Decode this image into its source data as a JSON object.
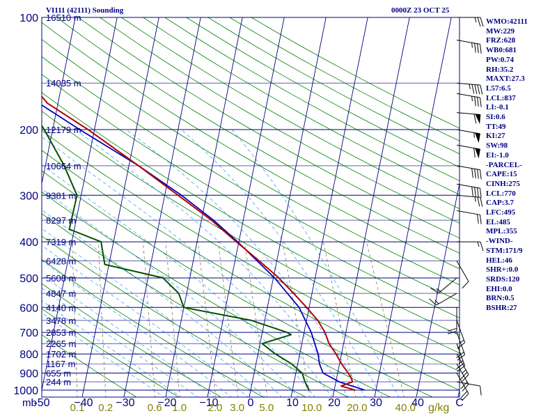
{
  "header": {
    "station_label": "VI111 (42111) Sounding",
    "valid_time": "0000Z 23 OCT 25"
  },
  "stats": [
    "WMO:42111",
    "MW:229",
    "FRZ:628",
    "WB0:681",
    "PW:0.74",
    "RH:35.2",
    "MAXT:27.3",
    "L57:6.5",
    "LCL:837",
    "LI:-0.1",
    "SI:0.6",
    "TT:49",
    "KI:27",
    "SW:98",
    "EI:-1.0",
    "-PARCEL-",
    "CAPE:15",
    "CINH:275",
    "LCL:770",
    "CAP:3.7",
    "LFC:495",
    "EL:485",
    "MPL:355",
    "-WIND-",
    "STM:171/9",
    "HEL:46",
    "SHR+:0.0",
    "SRDS:120",
    "EHI:0.0",
    "BRN:0.5",
    "BSHR:27"
  ],
  "chart_data": {
    "type": "skew-t",
    "colors": {
      "isobar": "#000080",
      "isotherm": "#000080",
      "dry_adiabat": "#008000",
      "moist_adiabat": "#40a0ff",
      "mixing_ratio": "#808040",
      "temperature": "#b00000",
      "dewpoint": "#005000",
      "parcel": "#0000c0",
      "axis_text": "#000080",
      "mixing_text": "#808000"
    },
    "pressure_unit": "mb",
    "mixing_unit": "g/kg",
    "pressure_range_mb": [
      1000,
      100
    ],
    "isobars_mb": [
      100,
      200,
      300,
      400,
      500,
      600,
      700,
      800,
      900,
      1000
    ],
    "pressure_tick_labels": [
      "100",
      "200",
      "300",
      "400",
      "500",
      "600",
      "700",
      "800",
      "900",
      "1000"
    ],
    "temperature_ticks_c": [
      -50,
      -40,
      -30,
      -20,
      -10,
      0,
      10,
      20,
      30,
      40,
      50
    ],
    "temperature_tick_labels": [
      "-50",
      "−40",
      "−30",
      "−20",
      "−10",
      "0",
      "10",
      "20",
      "30",
      "40",
      "C"
    ],
    "mixing_ratio_ticks": [
      "0.1",
      "0.2",
      "0.6",
      "1.0",
      "2.0",
      "3.0",
      "5.0",
      "10.0",
      "20.0",
      "40.0"
    ],
    "height_labels": [
      {
        "p": 100,
        "text": "16510 m"
      },
      {
        "p": 150,
        "text": "14035 m"
      },
      {
        "p": 200,
        "text": "12179 m"
      },
      {
        "p": 250,
        "text": "10664 m"
      },
      {
        "p": 300,
        "text": "9381 m"
      },
      {
        "p": 350,
        "text": "8297 m"
      },
      {
        "p": 400,
        "text": "7319 m"
      },
      {
        "p": 450,
        "text": "6428 m"
      },
      {
        "p": 500,
        "text": "5608 m"
      },
      {
        "p": 550,
        "text": "4847 m"
      },
      {
        "p": 600,
        "text": "4140 m"
      },
      {
        "p": 650,
        "text": "3478 m"
      },
      {
        "p": 700,
        "text": "2853 m"
      },
      {
        "p": 750,
        "text": "2265 m"
      },
      {
        "p": 800,
        "text": "1702 m"
      },
      {
        "p": 850,
        "text": "1167 m"
      },
      {
        "p": 900,
        "text": "655 m"
      },
      {
        "p": 950,
        "text": "244 m"
      }
    ],
    "temperature_profile": [
      {
        "p": 1000,
        "t": 25.0
      },
      {
        "p": 975,
        "t": 21.5
      },
      {
        "p": 950,
        "t": 24.0
      },
      {
        "p": 925,
        "t": 23.4
      },
      {
        "p": 900,
        "t": 22.5
      },
      {
        "p": 850,
        "t": 20.5
      },
      {
        "p": 800,
        "t": 18.7
      },
      {
        "p": 750,
        "t": 16.5
      },
      {
        "p": 700,
        "t": 15.0
      },
      {
        "p": 650,
        "t": 12.7
      },
      {
        "p": 600,
        "t": 9.4
      },
      {
        "p": 550,
        "t": 5.6
      },
      {
        "p": 500,
        "t": 1.3
      },
      {
        "p": 450,
        "t": -4.2
      },
      {
        "p": 400,
        "t": -10.6
      },
      {
        "p": 350,
        "t": -17.6
      },
      {
        "p": 300,
        "t": -26.8
      },
      {
        "p": 250,
        "t": -37.7
      },
      {
        "p": 200,
        "t": -51.5
      },
      {
        "p": 170,
        "t": -62.5
      },
      {
        "p": 150,
        "t": -67.6
      },
      {
        "p": 130,
        "t": -73.4
      },
      {
        "p": 100,
        "t": -83.5
      }
    ],
    "dewpoint_profile": [
      {
        "p": 1000,
        "t": 14.0
      },
      {
        "p": 950,
        "t": 12.6
      },
      {
        "p": 900,
        "t": 11.5
      },
      {
        "p": 850,
        "t": 8.5
      },
      {
        "p": 800,
        "t": 4.2
      },
      {
        "p": 750,
        "t": 0.5
      },
      {
        "p": 710,
        "t": 7.0
      },
      {
        "p": 700,
        "t": 5.9
      },
      {
        "p": 650,
        "t": -3.2
      },
      {
        "p": 600,
        "t": -20.0
      },
      {
        "p": 550,
        "t": -21.9
      },
      {
        "p": 500,
        "t": -26.4
      },
      {
        "p": 460,
        "t": -41.0
      },
      {
        "p": 400,
        "t": -43.0
      },
      {
        "p": 370,
        "t": -51.2
      },
      {
        "p": 300,
        "t": -51.0
      },
      {
        "p": 250,
        "t": -55.5
      },
      {
        "p": 200,
        "t": -62.0
      },
      {
        "p": 180,
        "t": -65.4
      },
      {
        "p": 150,
        "t": -70.5
      },
      {
        "p": 130,
        "t": -76.0
      },
      {
        "p": 100,
        "t": -86.9
      }
    ],
    "parcel_profile": [
      {
        "p": 1000,
        "t": 27.3
      },
      {
        "p": 950,
        "t": 20.8
      },
      {
        "p": 900,
        "t": 16.5
      },
      {
        "p": 850,
        "t": 15.2
      },
      {
        "p": 800,
        "t": 14.4
      },
      {
        "p": 700,
        "t": 11.7
      },
      {
        "p": 600,
        "t": 7.6
      },
      {
        "p": 500,
        "t": 0.3
      },
      {
        "p": 400,
        "t": -10.3
      },
      {
        "p": 350,
        "t": -17.1
      },
      {
        "p": 300,
        "t": -26.0
      },
      {
        "p": 250,
        "t": -37.7
      },
      {
        "p": 200,
        "t": -53.5
      },
      {
        "p": 150,
        "t": -73.0
      },
      {
        "p": 115,
        "t": -92.2
      }
    ],
    "wind_barbs": [
      {
        "p": 100,
        "dir": 90,
        "spd": 25
      },
      {
        "p": 115,
        "dir": 100,
        "spd": 35
      },
      {
        "p": 150,
        "dir": 95,
        "spd": 45
      },
      {
        "p": 160,
        "dir": 100,
        "spd": 35
      },
      {
        "p": 180,
        "dir": 95,
        "spd": 60
      },
      {
        "p": 200,
        "dir": 100,
        "spd": 55
      },
      {
        "p": 220,
        "dir": 100,
        "spd": 60
      },
      {
        "p": 250,
        "dir": 100,
        "spd": 40
      },
      {
        "p": 280,
        "dir": 100,
        "spd": 40
      },
      {
        "p": 300,
        "dir": 95,
        "spd": 25
      },
      {
        "p": 330,
        "dir": 100,
        "spd": 20
      },
      {
        "p": 400,
        "dir": 90,
        "spd": 15
      },
      {
        "p": 450,
        "dir": 150,
        "spd": 10
      },
      {
        "p": 500,
        "dir": 230,
        "spd": 15
      },
      {
        "p": 550,
        "dir": 240,
        "spd": 15
      },
      {
        "p": 600,
        "dir": 180,
        "spd": 20
      },
      {
        "p": 650,
        "dir": 160,
        "spd": 15
      },
      {
        "p": 700,
        "dir": 160,
        "spd": 20
      },
      {
        "p": 750,
        "dir": 160,
        "spd": 25
      },
      {
        "p": 800,
        "dir": 150,
        "spd": 25
      },
      {
        "p": 850,
        "dir": 150,
        "spd": 20
      },
      {
        "p": 900,
        "dir": 150,
        "spd": 20
      },
      {
        "p": 950,
        "dir": 100,
        "spd": 10
      }
    ]
  }
}
